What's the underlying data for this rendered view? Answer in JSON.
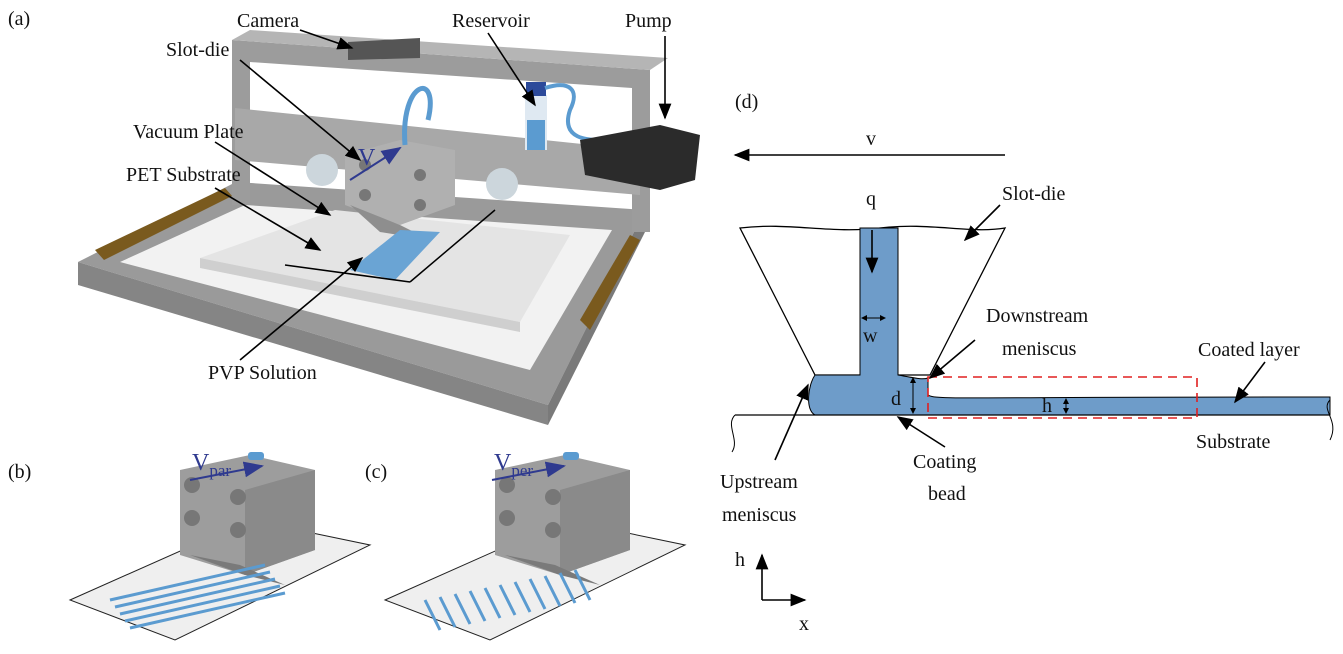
{
  "panels": {
    "a": {
      "label": "(a)",
      "camera": "Camera",
      "reservoir": "Reservoir",
      "pump": "Pump",
      "slot_die": "Slot-die",
      "vacuum_plate": "Vacuum Plate",
      "pet_substrate": "PET Substrate",
      "pvp_solution": "PVP Solution",
      "velocity": "V"
    },
    "b": {
      "label": "(b)",
      "velocity": {
        "main": "V",
        "sub": "par"
      }
    },
    "c": {
      "label": "(c)",
      "velocity": {
        "main": "V",
        "sub": "per"
      }
    },
    "d": {
      "label": "(d)",
      "velocity": "v",
      "flow": "q",
      "slot_width": "w",
      "slot_die": "Slot-die",
      "downstream_meniscus": [
        "Downstream",
        "meniscus"
      ],
      "coated_layer": "Coated layer",
      "gap": "d",
      "thickness": "h",
      "substrate": "Substrate",
      "coating_bead": [
        "Coating",
        "bead"
      ],
      "upstream_meniscus": [
        "Upstream",
        "meniscus"
      ],
      "axis_h": "h",
      "axis_x": "x"
    }
  }
}
